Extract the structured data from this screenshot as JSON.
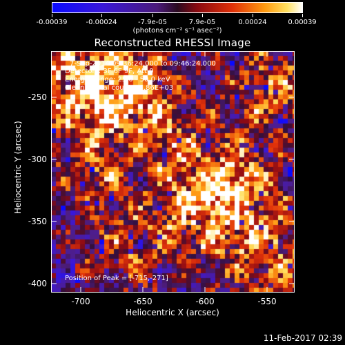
{
  "colorbar": {
    "tick_labels": [
      "-0.00039",
      "-0.00024",
      "-7.9e-05",
      "7.9e-05",
      "0.00024",
      "0.00039"
    ],
    "units": "(photons cm⁻² s⁻¹ asec⁻²)"
  },
  "title": "Reconstructed RHESSI Image",
  "annotations": {
    "time_range": "7-Sep-2014 09:36:24.000 to 09:46:24.000",
    "detectors": "Detectors: 3F 6F 9F, Att 0",
    "energy": "Energy Range: 25.0 - 50.0 keV",
    "method": "Clean    Total counts: 4.86E+03",
    "peak": "Position of Peak = [-715,-271]"
  },
  "axes": {
    "xlabel": "Heliocentric X (arcsec)",
    "ylabel": "Heliocentric Y (arcsec)",
    "xticks": [
      "-700",
      "-650",
      "-600",
      "-550"
    ],
    "yticks": [
      "-250",
      "-300",
      "-350",
      "-400"
    ]
  },
  "timestamp": "11-Feb-2017 02:39"
}
